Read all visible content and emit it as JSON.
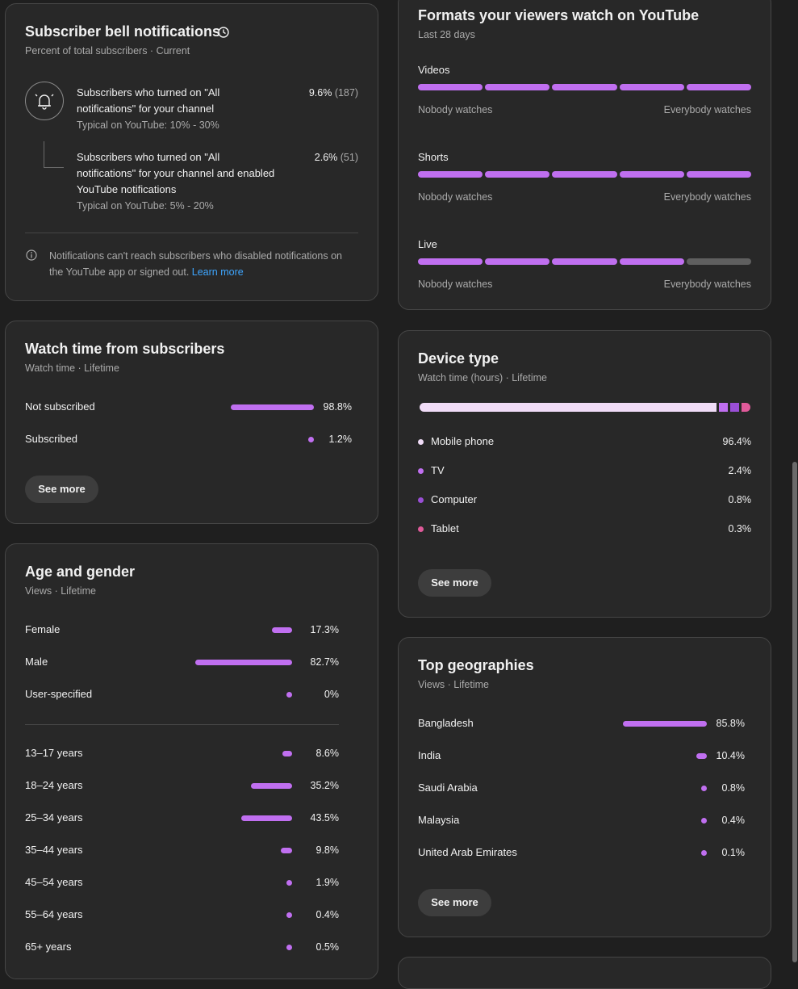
{
  "bell": {
    "title": "Subscriber bell notifications",
    "subtitle": "Percent of total subscribers · Current",
    "row1": {
      "line1": "Subscribers who turned on \"All",
      "line2": "notifications\" for your channel",
      "typical": "Typical on YouTube: 10% - 30%",
      "pct": "9.6%",
      "count": "(187)"
    },
    "row2": {
      "line1": "Subscribers who turned on \"All",
      "line2": "notifications\" for your channel and enabled",
      "line3": "YouTube notifications",
      "typical": "Typical on YouTube: 5% - 20%",
      "pct": "2.6%",
      "count": "(51)"
    },
    "note_line1": "Notifications can't reach subscribers who disabled notifications on",
    "note_line2": "the YouTube app or signed out.",
    "learn_more": "Learn more"
  },
  "watch_subs": {
    "title": "Watch time from subscribers",
    "subtitle": "Watch time · Lifetime",
    "rows": [
      {
        "label": "Not subscribed",
        "value": "98.8%",
        "fraction": 0.988
      },
      {
        "label": "Subscribed",
        "value": "1.2%",
        "fraction": 0.012
      }
    ],
    "see_more": "See more"
  },
  "age_gender": {
    "title": "Age and gender",
    "subtitle": "Views · Lifetime",
    "gender": [
      {
        "label": "Female",
        "value": "17.3%",
        "fraction": 0.173
      },
      {
        "label": "Male",
        "value": "82.7%",
        "fraction": 0.827
      },
      {
        "label": "User-specified",
        "value": "0%",
        "fraction": 0
      }
    ],
    "ages": [
      {
        "label": "13–17 years",
        "value": "8.6%",
        "fraction": 0.086
      },
      {
        "label": "18–24 years",
        "value": "35.2%",
        "fraction": 0.352
      },
      {
        "label": "25–34 years",
        "value": "43.5%",
        "fraction": 0.435
      },
      {
        "label": "35–44 years",
        "value": "9.8%",
        "fraction": 0.098
      },
      {
        "label": "45–54 years",
        "value": "1.9%",
        "fraction": 0.019
      },
      {
        "label": "55–64 years",
        "value": "0.4%",
        "fraction": 0.004
      },
      {
        "label": "65+ years",
        "value": "0.5%",
        "fraction": 0.005
      }
    ]
  },
  "formats": {
    "title": "Formats your viewers watch on YouTube",
    "subtitle": "Last 28 days",
    "low_label": "Nobody watches",
    "high_label": "Everybody watches",
    "items": [
      {
        "label": "Videos",
        "level": 5,
        "max": 5
      },
      {
        "label": "Shorts",
        "level": 5,
        "max": 5
      },
      {
        "label": "Live",
        "level": 4,
        "max": 5
      }
    ]
  },
  "device": {
    "title": "Device type",
    "subtitle": "Watch time (hours) · Lifetime",
    "items": [
      {
        "label": "Mobile phone",
        "value": "96.4%",
        "fraction": 0.964,
        "color": "#f0dcf7"
      },
      {
        "label": "TV",
        "value": "2.4%",
        "fraction": 0.024,
        "color": "#c06ff0"
      },
      {
        "label": "Computer",
        "value": "0.8%",
        "fraction": 0.008,
        "color": "#9a4fd6"
      },
      {
        "label": "Tablet",
        "value": "0.3%",
        "fraction": 0.003,
        "color": "#e05a9a"
      }
    ],
    "see_more": "See more"
  },
  "geo": {
    "title": "Top geographies",
    "subtitle": "Views · Lifetime",
    "rows": [
      {
        "label": "Bangladesh",
        "value": "85.8%",
        "fraction": 0.858
      },
      {
        "label": "India",
        "value": "10.4%",
        "fraction": 0.104
      },
      {
        "label": "Saudi Arabia",
        "value": "0.8%",
        "fraction": 0.008
      },
      {
        "label": "Malaysia",
        "value": "0.4%",
        "fraction": 0.004
      },
      {
        "label": "United Arab Emirates",
        "value": "0.1%",
        "fraction": 0.001
      }
    ],
    "see_more": "See more"
  },
  "colors": {
    "accent": "#c06ff0",
    "bar_inactive": "#5f5f5f",
    "link": "#3ea6ff"
  },
  "icons": {
    "bell": "bell-icon",
    "history": "history-icon",
    "info": "info-icon"
  }
}
